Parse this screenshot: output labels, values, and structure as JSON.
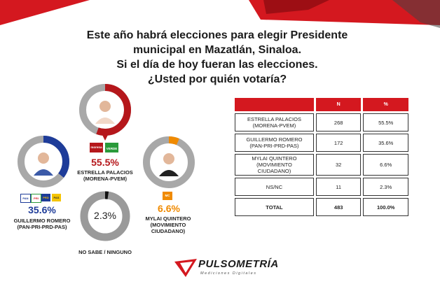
{
  "title_lines": [
    "Este año habrá elecciones para elegir Presidente",
    "municipal en Mazatlán, Sinaloa.",
    "Si el día de hoy fueran las elecciones.",
    "¿Usted por quién votaría?"
  ],
  "colors": {
    "accent_red": "#d4181f",
    "guillermo_ring": "#1e3c99",
    "estrella_ring": "#b5171b",
    "mylai_ring": "#f08a00",
    "ring_track": "#9a9a9a"
  },
  "candidates": [
    {
      "pct_label": "55.5%",
      "value": 55.5,
      "name_line1": "ESTRELLA PALACIOS",
      "name_line2": "(MORENA-PVEM)",
      "party_badges": [
        "morena",
        "VERDE"
      ]
    },
    {
      "pct_label": "35.6%",
      "value": 35.6,
      "name_line1": "GUILLERMO ROMERO",
      "name_line2": "(PAN-PRI-PRD-PAS)",
      "party_badges": [
        "PAN",
        "PRI",
        "PRD",
        "PAS"
      ]
    },
    {
      "pct_label": "6.6%",
      "value": 6.6,
      "name_line1": "MYLAI QUINTERO",
      "name_line2": "(MOVIMIENTO",
      "name_line3": "CIUDADANO)",
      "party_badges": [
        "MC"
      ]
    },
    {
      "pct_label": "2.3%",
      "value": 2.3,
      "name_line1": "NO SABE /  NINGUNO"
    }
  ],
  "table": {
    "headers": [
      "",
      "N",
      "%"
    ],
    "rows": [
      {
        "label": [
          "ESTRELLA PALACIOS",
          "(MORENA-PVEM)"
        ],
        "n": "268",
        "pct": "55.5%"
      },
      {
        "label": [
          "GUILLERMO ROMERO",
          "(PAN-PRI-PRD-PAS)"
        ],
        "n": "172",
        "pct": "35.6%"
      },
      {
        "label": [
          "MYLAI QUINTERO",
          "(MOVIMIENTO",
          "CIUDADANO)"
        ],
        "n": "32",
        "pct": "6.6%"
      },
      {
        "label": [
          "NS/NC"
        ],
        "n": "11",
        "pct": "2.3%"
      },
      {
        "label": [
          "TOTAL"
        ],
        "n": "483",
        "pct": "100.0%"
      }
    ]
  },
  "chart_data": {
    "type": "table",
    "categories": [
      "ESTRELLA PALACIOS (MORENA-PVEM)",
      "GUILLERMO ROMERO (PAN-PRI-PRD-PAS)",
      "MYLAI QUINTERO (MOVIMIENTO CIUDADANO)",
      "NS/NC"
    ],
    "columns": [
      "N",
      "%"
    ],
    "n": [
      268,
      172,
      32,
      11
    ],
    "values": [
      55.5,
      35.6,
      6.6,
      2.3
    ],
    "total_n": 483,
    "total_pct": 100.0
  },
  "brand": {
    "name": "PULSOMETRÍA",
    "tagline": "Mediciones Digitales"
  }
}
